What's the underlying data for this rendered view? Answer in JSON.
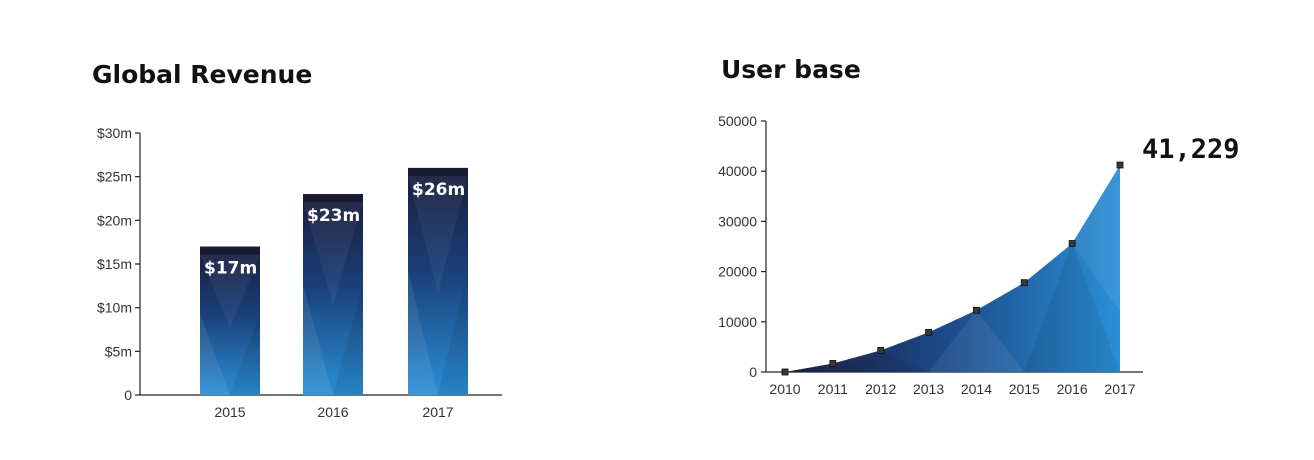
{
  "chart_data": [
    {
      "type": "bar",
      "title": "Global Revenue",
      "categories": [
        "2015",
        "2016",
        "2017"
      ],
      "values": [
        17,
        23,
        26
      ],
      "data_labels": [
        "$17m",
        "$23m",
        "$26m"
      ],
      "yticks": [
        "0",
        "$5m",
        "$10m",
        "$15m",
        "$20m",
        "$25m",
        "$30m"
      ],
      "ylim": [
        0,
        30
      ],
      "grid": false,
      "colors": {
        "top": "#1b1c3a",
        "bottom": "#2a8fd6"
      }
    },
    {
      "type": "area",
      "title": "User base",
      "x": [
        "2010",
        "2011",
        "2012",
        "2013",
        "2014",
        "2015",
        "2016",
        "2017"
      ],
      "values": [
        0,
        1700,
        4300,
        7900,
        12300,
        17800,
        25600,
        41229
      ],
      "yticks": [
        "0",
        "10000",
        "20000",
        "30000",
        "40000",
        "50000"
      ],
      "ylim": [
        0,
        50000
      ],
      "callout": "41,229",
      "grid": false,
      "colors": {
        "left": "#1b1c3a",
        "right": "#2a8fd6",
        "marker": "#333333"
      }
    }
  ]
}
